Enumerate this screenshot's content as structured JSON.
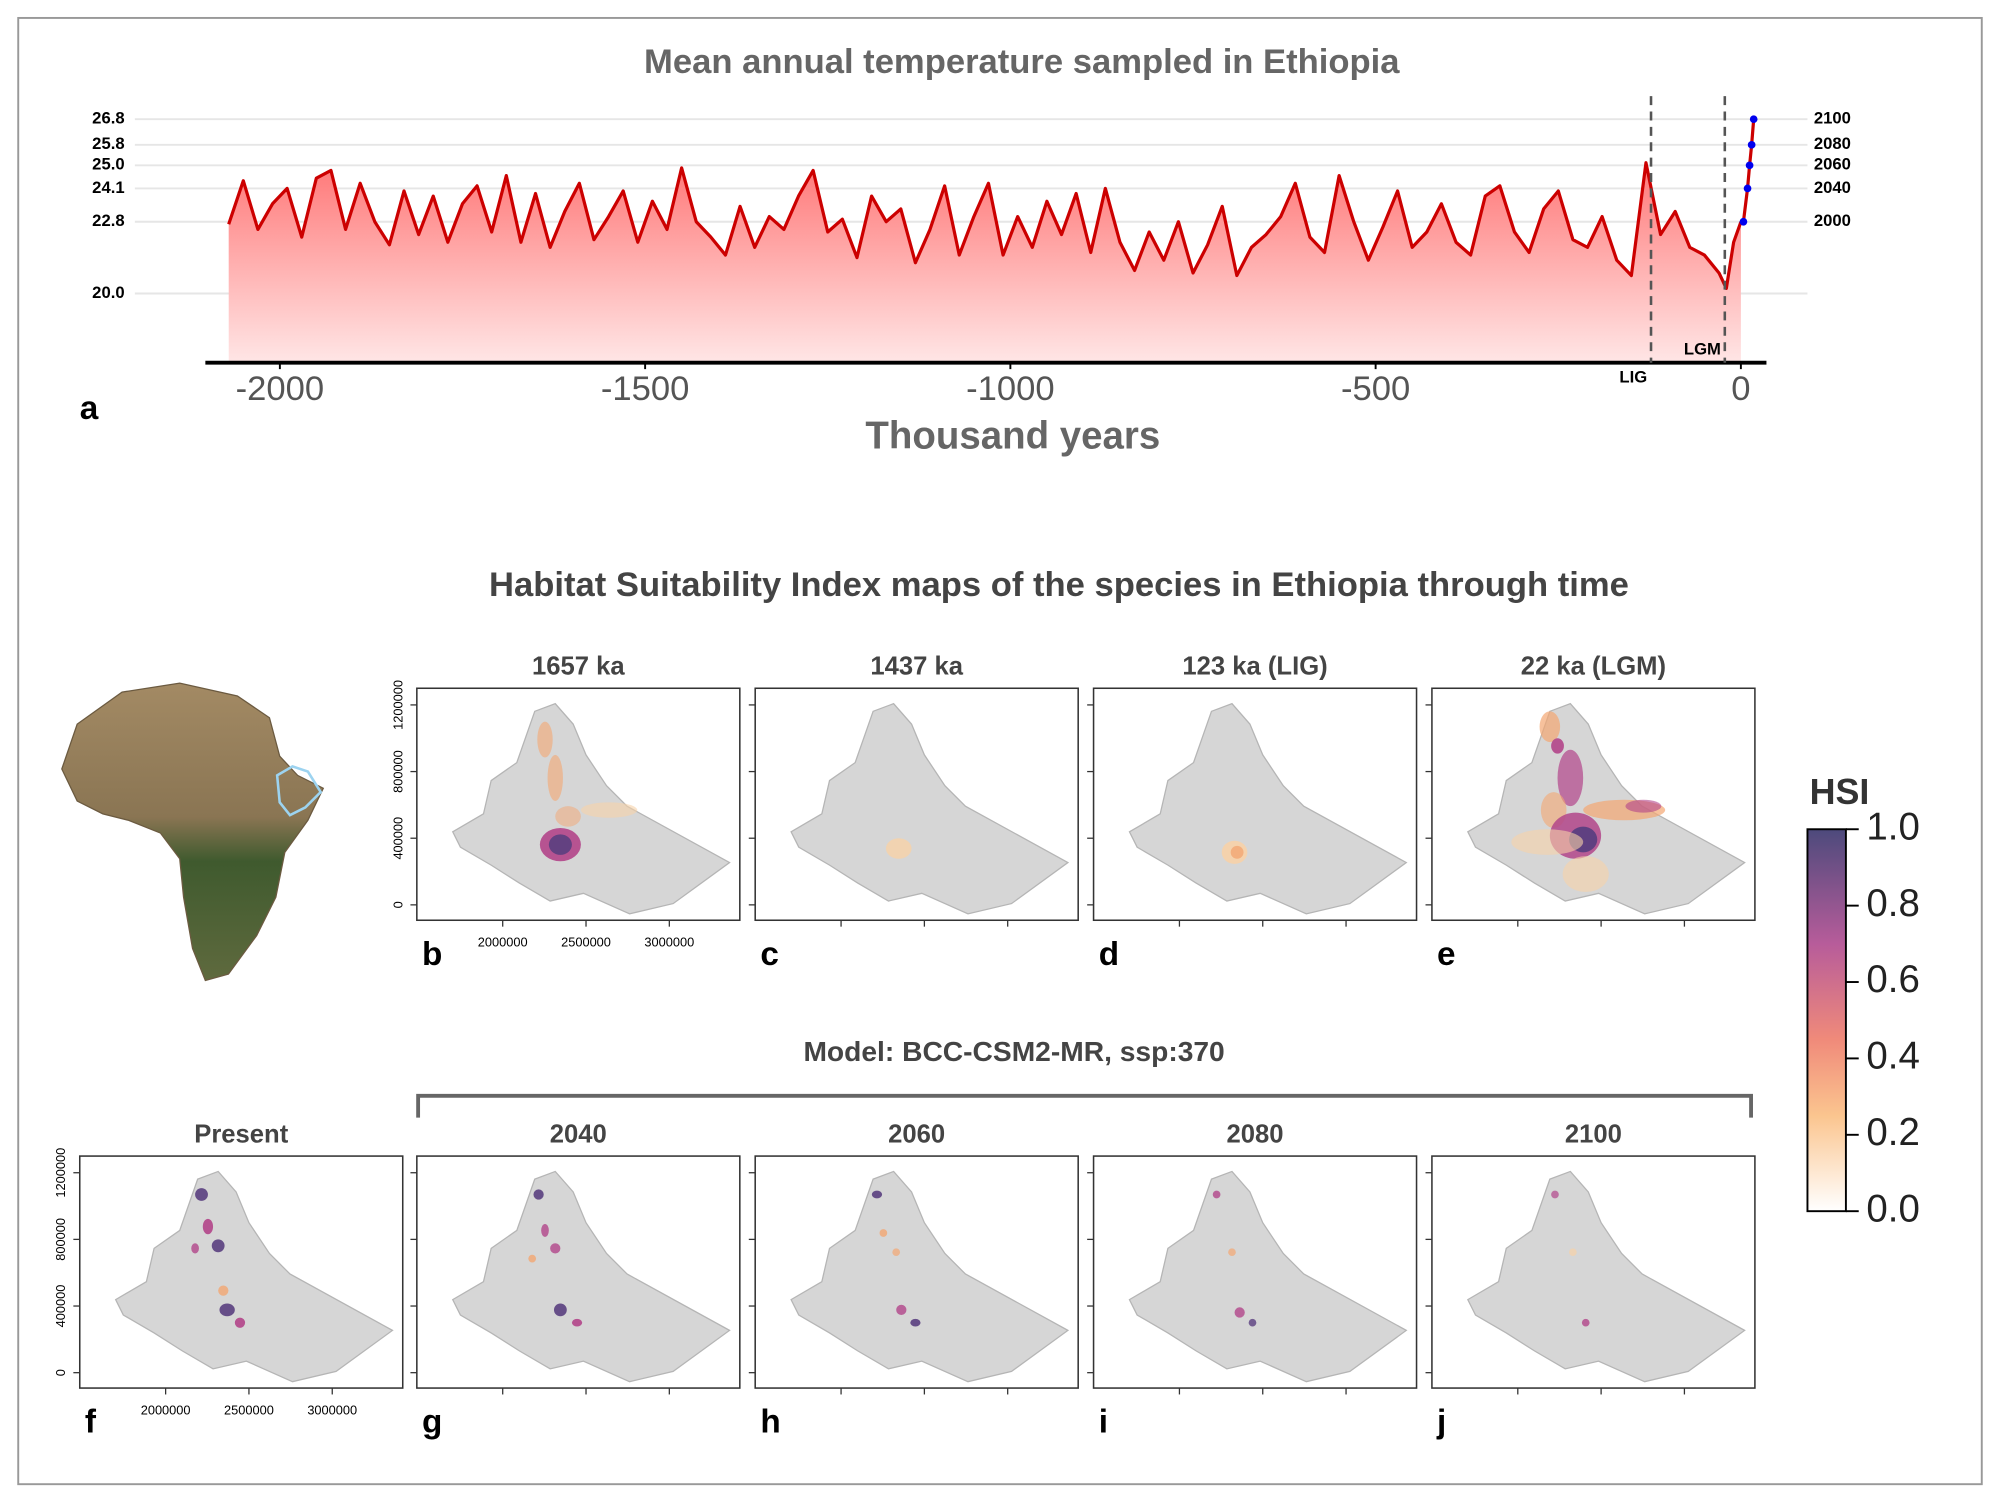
{
  "chart_data": {
    "type": "line",
    "title": "Mean annual temperature sampled in Ethiopia",
    "xlabel": "Thousand years",
    "panel_label": "a",
    "color": "#cc0000",
    "grid": true,
    "xlim": [
      -2102,
      35
    ],
    "xticks": [
      -2000,
      -1500,
      -1000,
      -500,
      0
    ],
    "ylim": [
      17.3,
      27.2
    ],
    "yticks": [
      {
        "value": 20,
        "label": "20.0"
      },
      22.8,
      24.1,
      {
        "value": 25,
        "label": "25.0"
      },
      25.8,
      26.8
    ],
    "x": [
      -2070,
      -2050,
      -2030,
      -2010,
      -1990,
      -1970,
      -1950,
      -1930,
      -1910,
      -1890,
      -1870,
      -1850,
      -1830,
      -1810,
      -1790,
      -1770,
      -1750,
      -1730,
      -1710,
      -1690,
      -1670,
      -1650,
      -1630,
      -1610,
      -1590,
      -1570,
      -1550,
      -1530,
      -1510,
      -1490,
      -1470,
      -1450,
      -1430,
      -1410,
      -1390,
      -1370,
      -1350,
      -1330,
      -1310,
      -1290,
      -1270,
      -1250,
      -1230,
      -1210,
      -1190,
      -1170,
      -1150,
      -1130,
      -1110,
      -1090,
      -1070,
      -1050,
      -1030,
      -1010,
      -990,
      -970,
      -950,
      -930,
      -910,
      -890,
      -870,
      -850,
      -830,
      -810,
      -790,
      -770,
      -750,
      -730,
      -710,
      -690,
      -670,
      -650,
      -630,
      -610,
      -590,
      -570,
      -550,
      -530,
      -510,
      -490,
      -470,
      -450,
      -430,
      -410,
      -390,
      -370,
      -350,
      -330,
      -310,
      -290,
      -270,
      -250,
      -230,
      -210,
      -190,
      -170,
      -150,
      -130,
      -110,
      -90,
      -70,
      -50,
      -30,
      -20,
      -10,
      0
    ],
    "values": [
      22.7,
      24.4,
      22.5,
      23.5,
      24.1,
      22.2,
      24.5,
      24.8,
      22.5,
      24.3,
      22.8,
      21.9,
      24.0,
      22.3,
      23.8,
      22.0,
      23.5,
      24.2,
      22.4,
      24.6,
      22.0,
      23.9,
      21.8,
      23.2,
      24.3,
      22.1,
      23.0,
      24.0,
      22.0,
      23.6,
      22.5,
      24.9,
      22.8,
      22.2,
      21.5,
      23.4,
      21.8,
      23.0,
      22.5,
      23.8,
      24.8,
      22.4,
      22.9,
      21.4,
      23.8,
      22.8,
      23.3,
      21.2,
      22.5,
      24.2,
      21.5,
      23.0,
      24.3,
      21.5,
      23.0,
      21.8,
      23.6,
      22.3,
      23.9,
      21.6,
      24.1,
      22.0,
      20.9,
      22.4,
      21.3,
      22.8,
      20.8,
      21.9,
      23.4,
      20.7,
      21.8,
      22.3,
      23.0,
      24.3,
      22.2,
      21.6,
      24.6,
      22.8,
      21.3,
      22.6,
      24.0,
      21.8,
      22.4,
      23.5,
      22.0,
      21.5,
      23.8,
      24.2,
      22.4,
      21.6,
      23.3,
      24.0,
      22.1,
      21.8,
      23.0,
      21.3,
      20.7,
      25.1,
      22.3,
      23.2,
      21.8,
      21.5,
      20.8,
      20.2,
      22.0,
      22.8
    ],
    "future": {
      "color": "#0000ee",
      "years": [
        2000,
        2040,
        2060,
        2080,
        2100
      ],
      "values": [
        22.8,
        24.1,
        25.0,
        25.8,
        26.8
      ]
    },
    "annotations": [
      {
        "text": "LIG",
        "x": -123
      },
      {
        "text": "LGM",
        "x": -22
      }
    ]
  },
  "maps": {
    "title": "Habitat Suitability Index maps of the species in Ethiopia through time",
    "model_label": "Model: BCC-CSM2-MR, ssp:370",
    "panels": [
      {
        "label": "b",
        "title": "1657 ka"
      },
      {
        "label": "c",
        "title": "1437 ka"
      },
      {
        "label": "d",
        "title": "123 ka (LIG)"
      },
      {
        "label": "e",
        "title": "22 ka (LGM)"
      },
      {
        "label": "f",
        "title": "Present"
      },
      {
        "label": "g",
        "title": "2040"
      },
      {
        "label": "h",
        "title": "2060"
      },
      {
        "label": "i",
        "title": "2080"
      },
      {
        "label": "j",
        "title": "2100"
      }
    ],
    "map_yticks": [
      0,
      400000,
      800000,
      1200000
    ],
    "map_xticks": [
      2000000,
      2500000,
      3000000
    ],
    "legend": {
      "title": "HSI",
      "ticks": [
        {
          "value": 0,
          "label": "0.0"
        },
        0.2,
        0.4,
        0.6,
        0.8,
        {
          "value": 1,
          "label": "1.0"
        }
      ]
    }
  }
}
